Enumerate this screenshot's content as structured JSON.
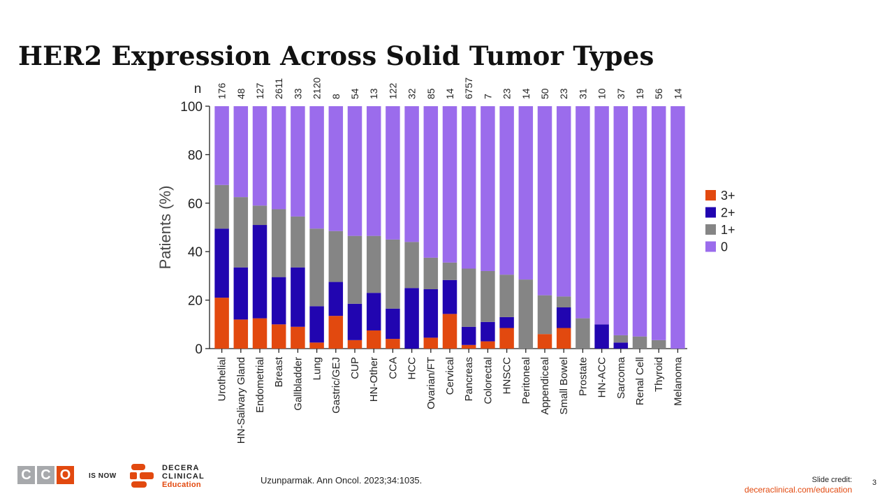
{
  "title": "HER2 Expression Across Solid Tumor Types",
  "chart_data": {
    "type": "bar",
    "stacked": true,
    "ylabel": "Patients (%)",
    "ylim": [
      0,
      100
    ],
    "yticks": [
      0,
      20,
      40,
      60,
      80,
      100
    ],
    "n_label": "n",
    "categories": [
      "Urothelial",
      "HN-Salivary Gland",
      "Endometrial",
      "Breast",
      "Gallbladder",
      "Lung",
      "Gastric/GEJ",
      "CUP",
      "HN-Other",
      "CCA",
      "HCC",
      "Ovarian/FT",
      "Cervical",
      "Pancreas",
      "Colorectal",
      "HNSCC",
      "Peritoneal",
      "Appendiceal",
      "Small Bowel",
      "Prostate",
      "HN-ACC",
      "Sarcoma",
      "Renal Cell",
      "Thyroid",
      "Melanoma"
    ],
    "n": [
      "176",
      "48",
      "127",
      "2611",
      "33",
      "2120",
      "8",
      "54",
      "13",
      "122",
      "32",
      "85",
      "14",
      "6757",
      "7",
      "23",
      "14",
      "50",
      "23",
      "31",
      "10",
      "37",
      "19",
      "56",
      "14"
    ],
    "series": [
      {
        "name": "3+",
        "color": "#e2490f",
        "values": [
          21,
          12,
          12.5,
          10,
          9,
          2.5,
          13.5,
          3.5,
          7.5,
          4,
          0,
          4.5,
          14.3,
          1.5,
          3,
          8.5,
          0,
          6,
          8.5,
          0,
          0,
          0,
          0,
          0,
          0
        ]
      },
      {
        "name": "2+",
        "color": "#2105b0",
        "values": [
          28.5,
          21.5,
          38.5,
          19.5,
          24.5,
          15,
          14,
          15,
          15.5,
          12.5,
          25,
          20,
          14,
          7.5,
          8,
          4.5,
          0,
          0,
          8.5,
          0,
          10,
          2.5,
          0,
          0,
          0
        ]
      },
      {
        "name": "1+",
        "color": "#858585",
        "values": [
          18,
          29,
          8,
          28,
          21,
          32,
          21,
          28,
          23.5,
          28.5,
          19,
          13,
          7.2,
          24,
          21,
          17.5,
          28.5,
          16,
          4.5,
          12.5,
          0,
          3,
          5,
          3.5,
          0
        ]
      },
      {
        "name": "0",
        "color": "#9b6cec",
        "values": [
          32.5,
          37.5,
          41,
          42.5,
          45.5,
          50.5,
          51.5,
          53.5,
          53.5,
          55,
          56,
          62.5,
          64.5,
          67,
          68,
          69.5,
          71.5,
          78,
          78.5,
          87.5,
          90,
          94.5,
          95,
          96.5,
          100
        ]
      }
    ],
    "legend_order": [
      "3+",
      "2+",
      "1+",
      "0"
    ],
    "legend_position": "right"
  },
  "footer": {
    "citation": "Uzunparmak. Ann Oncol. 2023;34:1035.",
    "credit_label": "Slide credit:",
    "credit_url": "deceraclinical.com/education",
    "page_number": "3"
  },
  "logos": {
    "cco_letters": [
      "C",
      "C",
      "O"
    ],
    "cco_colors": [
      "#a7a9ac",
      "#a7a9ac",
      "#e2490f"
    ],
    "is_now": "IS NOW",
    "decera_line1": "DECERA",
    "decera_line2": "CLINICAL",
    "decera_line3": "Education"
  }
}
